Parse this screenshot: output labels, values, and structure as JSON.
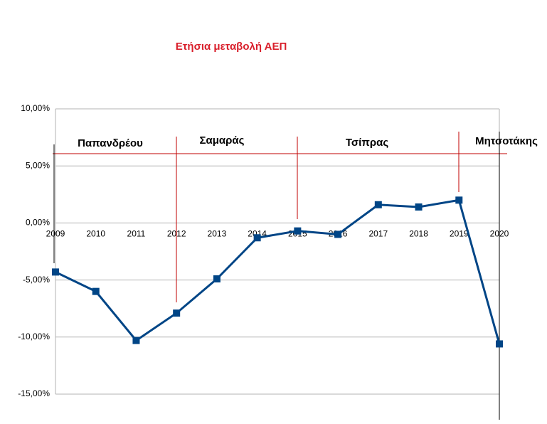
{
  "chart_data": {
    "type": "line",
    "title": "Ετήσια μεταβολή ΑΕΠ",
    "categories": [
      "2009",
      "2010",
      "2011",
      "2012",
      "2013",
      "2014",
      "2015",
      "2016",
      "2017",
      "2018",
      "2019",
      "2020"
    ],
    "series": [
      {
        "name": "ΑΕΠ",
        "color": "#004586",
        "values": [
          -4.3,
          -6.0,
          -10.3,
          -7.9,
          -4.9,
          -1.3,
          -0.7,
          -1.0,
          1.6,
          1.4,
          2.0,
          -10.6
        ]
      }
    ],
    "ylim": [
      -15,
      10
    ],
    "yticks": [
      {
        "value": -15,
        "label": "-15,00%"
      },
      {
        "value": -10,
        "label": "-10,00%"
      },
      {
        "value": -5,
        "label": "-5,00%"
      },
      {
        "value": 0,
        "label": "0,00%"
      },
      {
        "value": 5,
        "label": "5,00%"
      },
      {
        "value": 10,
        "label": "10,00%"
      }
    ],
    "grid": true,
    "annotations": [
      "Παπανδρέου",
      "Σαμαράς",
      "Τσίπρας",
      "Μητσοτάκης"
    ]
  }
}
